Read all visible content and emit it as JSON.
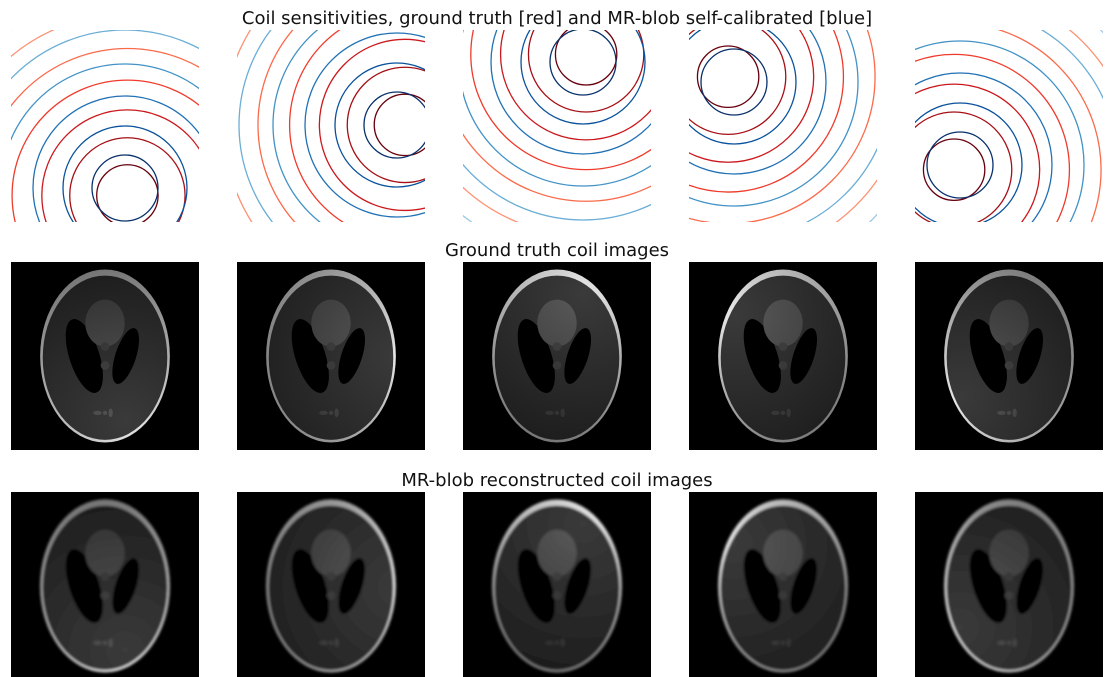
{
  "rows": [
    {
      "title": "Coil sensitivities, ground truth [red] and MR-blob self-calibrated [blue]"
    },
    {
      "title": "Ground truth coil images"
    },
    {
      "title": "MR-blob reconstructed coil images"
    }
  ]
}
